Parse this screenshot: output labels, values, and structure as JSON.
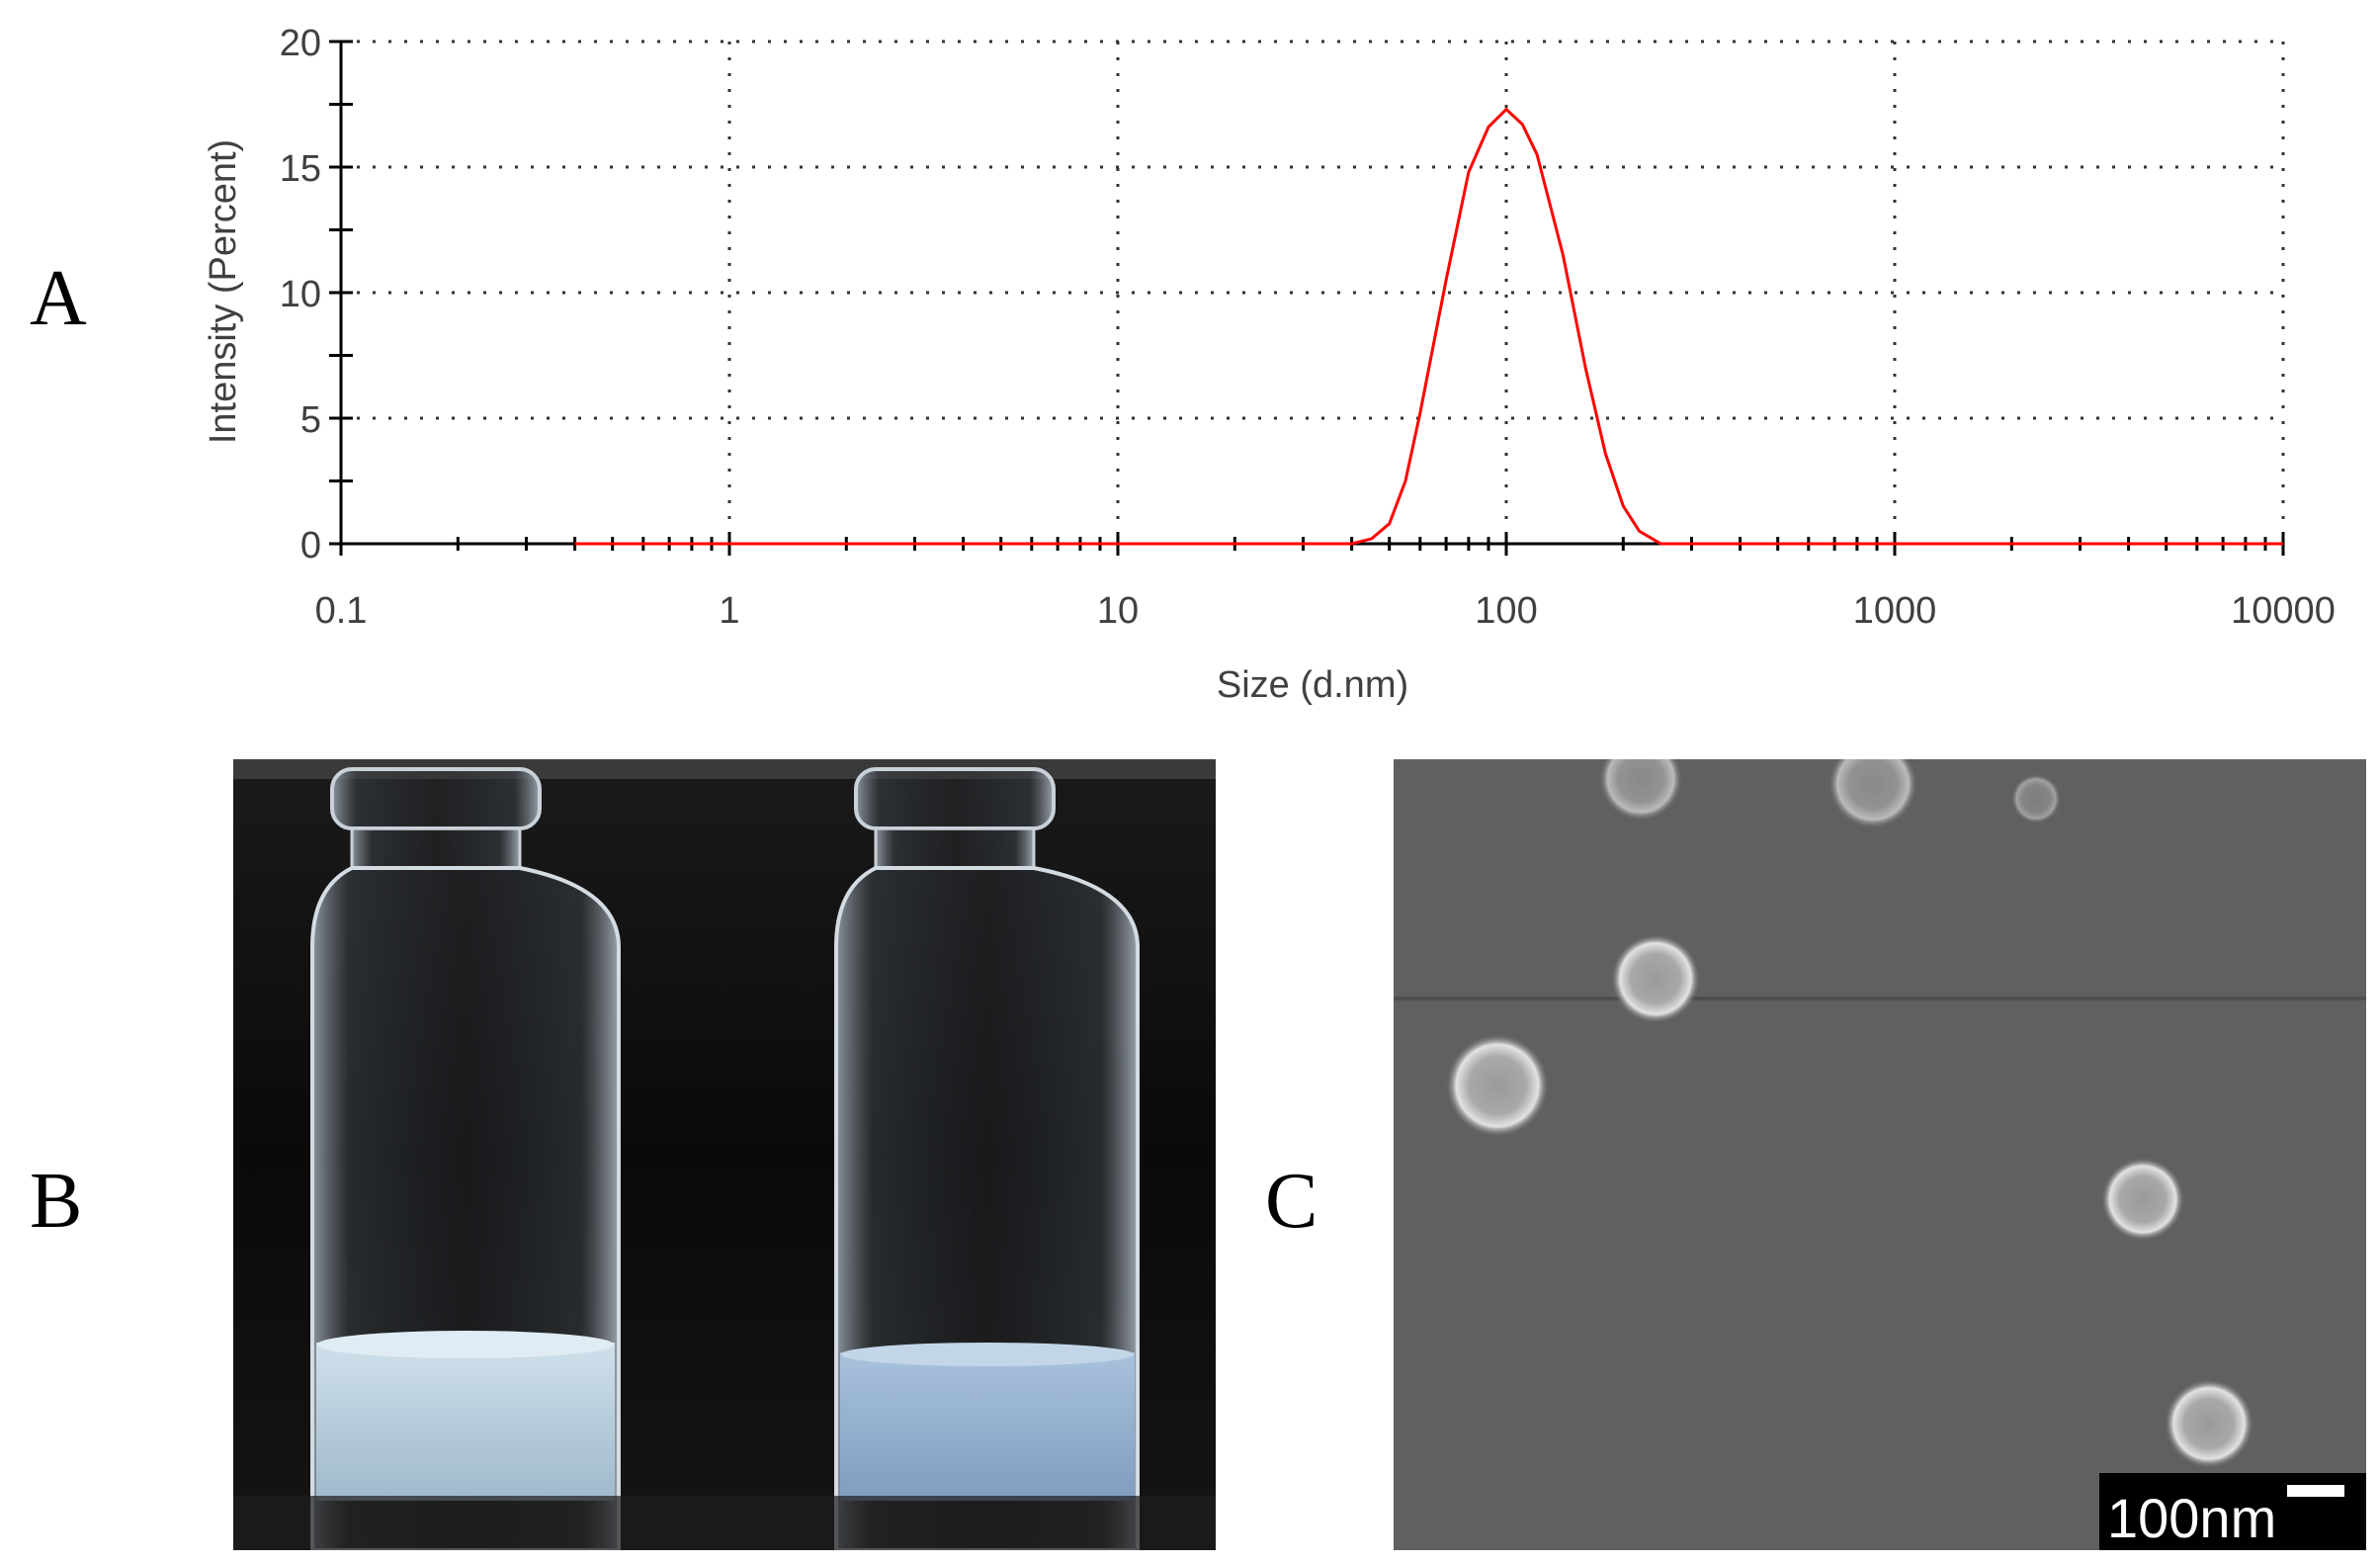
{
  "panels": {
    "a": "A",
    "b": "B",
    "c": "C"
  },
  "chart_data": {
    "type": "line",
    "x_scale": "log",
    "xlabel": "Size (d.nm)",
    "ylabel": "Intensity (Percent)",
    "xlim": [
      0.1,
      10000
    ],
    "ylim": [
      0,
      20
    ],
    "x_ticks": [
      "0.1",
      "1",
      "10",
      "100",
      "1000",
      "10000"
    ],
    "y_ticks": [
      "0",
      "5",
      "10",
      "15",
      "20"
    ],
    "grid": true,
    "series": [
      {
        "color": "#ff0000",
        "x": [
          0.4,
          10,
          40,
          45,
          50,
          55,
          60,
          70,
          80,
          90,
          100,
          110,
          120,
          140,
          160,
          180,
          200,
          220,
          250,
          300,
          1000,
          10000
        ],
        "y": [
          0,
          0,
          0,
          0.2,
          0.8,
          2.5,
          5.2,
          10.5,
          14.8,
          16.6,
          17.3,
          16.7,
          15.5,
          11.5,
          7.0,
          3.6,
          1.5,
          0.5,
          0,
          0,
          0,
          0
        ]
      }
    ]
  },
  "scalebar": {
    "label": "100nm"
  }
}
